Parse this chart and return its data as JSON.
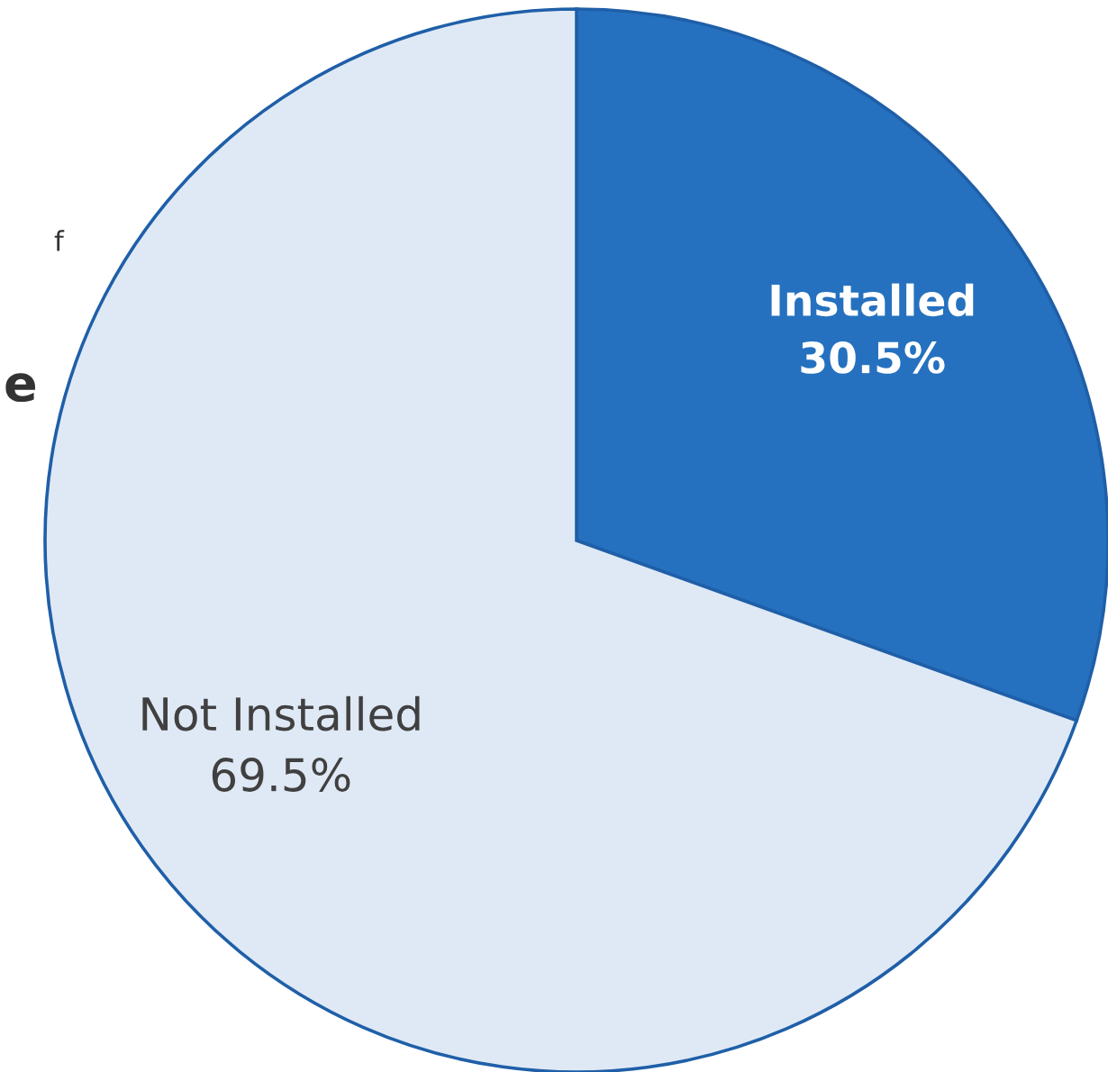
{
  "chart_data": {
    "type": "pie",
    "categories": [
      "Installed",
      "Not Installed"
    ],
    "values": [
      30.5,
      69.5
    ],
    "value_labels": [
      "30.5%",
      "69.5%"
    ],
    "colors": [
      "#2571bf",
      "#dfe9f5"
    ],
    "annotations": [
      "f",
      "e"
    ]
  }
}
